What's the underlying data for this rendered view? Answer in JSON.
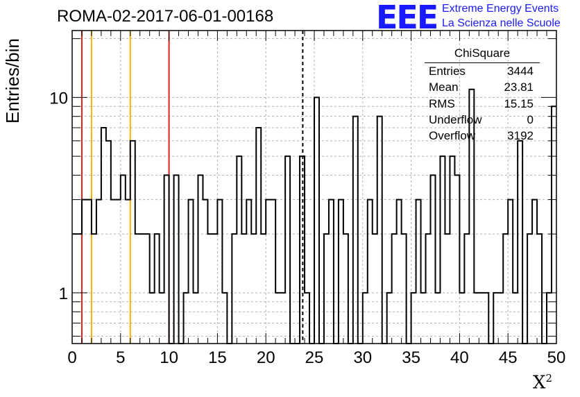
{
  "title": "ROMA-02-2017-06-01-00168",
  "logo": {
    "mark": "EEE",
    "line1": "Extreme Energy Events",
    "line2": "La Scienza nelle Scuole",
    "color": "#1a1aff"
  },
  "stats": {
    "name": "ChiSquare",
    "rows": [
      {
        "label": "Entries",
        "value": "3444"
      },
      {
        "label": "Mean",
        "value": "23.81"
      },
      {
        "label": "RMS",
        "value": "15.15"
      },
      {
        "label": "Underflow",
        "value": "0"
      },
      {
        "label": "Overflow",
        "value": "3192"
      }
    ]
  },
  "chart_data": {
    "type": "histogram",
    "xlabel": "X",
    "xlabel_sup": "2",
    "ylabel": "Entries/bin",
    "x_range": [
      0,
      50
    ],
    "y_range": [
      0.55,
      22
    ],
    "y_scale": "log",
    "bin_width": 0.5,
    "grid": true,
    "x_ticks": [
      "0",
      "5",
      "10",
      "15",
      "20",
      "25",
      "30",
      "35",
      "40",
      "45",
      "50"
    ],
    "y_tick_labels": [
      {
        "value": 1,
        "label": "1"
      },
      {
        "value": 10,
        "label": "10"
      }
    ],
    "bin_counts": [
      2,
      2,
      3,
      3,
      2,
      3,
      7,
      6,
      3,
      3,
      4,
      3,
      6,
      2,
      2,
      2,
      1,
      2,
      1,
      4,
      0,
      4,
      0,
      1,
      3,
      1,
      4,
      3,
      2,
      2,
      3,
      1,
      0,
      2,
      5,
      2,
      3,
      2,
      7,
      2,
      3,
      3,
      1,
      1,
      5,
      0,
      0,
      5,
      1,
      0,
      10,
      0,
      2,
      3,
      0,
      3,
      2,
      0,
      8,
      0,
      1,
      3,
      2,
      8,
      0,
      1,
      2,
      3,
      2,
      0,
      1,
      3,
      1,
      2,
      4,
      1,
      5,
      2,
      5,
      4,
      1,
      2,
      11,
      1,
      1,
      1,
      0,
      1,
      1,
      2,
      3,
      1,
      6,
      0,
      2,
      3,
      2,
      0,
      1,
      9
    ],
    "vertical_lines": [
      {
        "x": 1,
        "color": "#e3201c",
        "style": "solid"
      },
      {
        "x": 2,
        "color": "#f2b400",
        "style": "solid"
      },
      {
        "x": 6,
        "color": "#f2b400",
        "style": "solid"
      },
      {
        "x": 10,
        "color": "#e3201c",
        "style": "solid"
      },
      {
        "x": 23.81,
        "color": "#000000",
        "style": "dashed"
      }
    ]
  }
}
